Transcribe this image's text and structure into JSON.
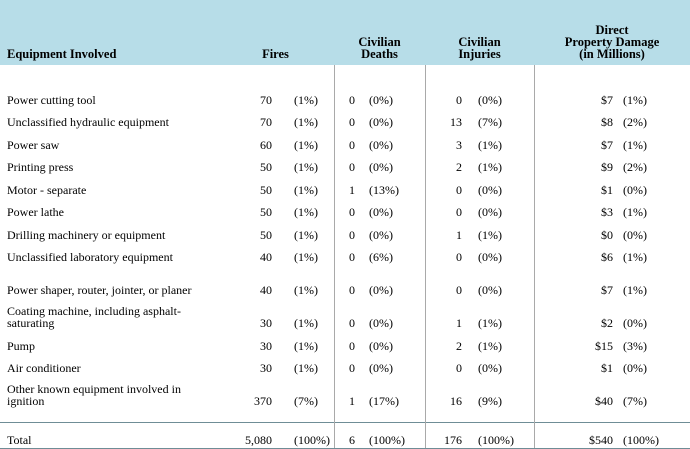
{
  "headers": {
    "equipment": "Equipment Involved",
    "fires": "Fires",
    "deaths_line1": "Civilian",
    "deaths_line2": "Deaths",
    "injuries_line1": "Civilian",
    "injuries_line2": "Injuries",
    "damage_line1": "Direct",
    "damage_line2": "Property Damage",
    "damage_line3": "(in Millions)"
  },
  "rows": [
    {
      "equipment": "Power cutting tool",
      "fires": "70",
      "fires_pct": "(1%)",
      "deaths": "0",
      "deaths_pct": "(0%)",
      "injuries": "0",
      "injuries_pct": "(0%)",
      "damage": "$7",
      "damage_pct": "(1%)"
    },
    {
      "equipment": "Unclassified hydraulic equipment",
      "fires": "70",
      "fires_pct": "(1%)",
      "deaths": "0",
      "deaths_pct": "(0%)",
      "injuries": "13",
      "injuries_pct": "(7%)",
      "damage": "$8",
      "damage_pct": "(2%)"
    },
    {
      "equipment": "Power saw",
      "fires": "60",
      "fires_pct": "(1%)",
      "deaths": "0",
      "deaths_pct": "(0%)",
      "injuries": "3",
      "injuries_pct": "(1%)",
      "damage": "$7",
      "damage_pct": "(1%)"
    },
    {
      "equipment": "Printing press",
      "fires": "50",
      "fires_pct": "(1%)",
      "deaths": "0",
      "deaths_pct": "(0%)",
      "injuries": "2",
      "injuries_pct": "(1%)",
      "damage": "$9",
      "damage_pct": "(2%)"
    },
    {
      "equipment": "Motor - separate",
      "fires": "50",
      "fires_pct": "(1%)",
      "deaths": "1",
      "deaths_pct": "(13%)",
      "injuries": "0",
      "injuries_pct": "(0%)",
      "damage": "$1",
      "damage_pct": "(0%)"
    },
    {
      "equipment": "Power lathe",
      "fires": "50",
      "fires_pct": "(1%)",
      "deaths": "0",
      "deaths_pct": "(0%)",
      "injuries": "0",
      "injuries_pct": "(0%)",
      "damage": "$3",
      "damage_pct": "(1%)"
    },
    {
      "equipment": "Drilling machinery or equipment",
      "fires": "50",
      "fires_pct": "(1%)",
      "deaths": "0",
      "deaths_pct": "(0%)",
      "injuries": "1",
      "injuries_pct": "(1%)",
      "damage": "$0",
      "damage_pct": "(0%)"
    },
    {
      "equipment": "Unclassified laboratory equipment",
      "fires": "40",
      "fires_pct": "(1%)",
      "deaths": "0",
      "deaths_pct": "(6%)",
      "injuries": "0",
      "injuries_pct": "(0%)",
      "damage": "$6",
      "damage_pct": "(1%)"
    },
    {
      "equipment": "Power shaper, router, jointer, or planer",
      "fires": "40",
      "fires_pct": "(1%)",
      "deaths": "0",
      "deaths_pct": "(0%)",
      "injuries": "0",
      "injuries_pct": "(0%)",
      "damage": "$7",
      "damage_pct": "(1%)"
    },
    {
      "equipment": "Coating machine, including asphalt-saturating",
      "fires": "30",
      "fires_pct": "(1%)",
      "deaths": "0",
      "deaths_pct": "(0%)",
      "injuries": "1",
      "injuries_pct": "(1%)",
      "damage": "$2",
      "damage_pct": "(0%)"
    },
    {
      "equipment": "Pump",
      "fires": "30",
      "fires_pct": "(1%)",
      "deaths": "0",
      "deaths_pct": "(0%)",
      "injuries": "2",
      "injuries_pct": "(1%)",
      "damage": "$15",
      "damage_pct": "(3%)"
    },
    {
      "equipment": "Air conditioner",
      "fires": "30",
      "fires_pct": "(1%)",
      "deaths": "0",
      "deaths_pct": "(0%)",
      "injuries": "0",
      "injuries_pct": "(0%)",
      "damage": "$1",
      "damage_pct": "(0%)"
    },
    {
      "equipment": "Other known equipment involved in ignition",
      "fires": "370",
      "fires_pct": "(7%)",
      "deaths": "1",
      "deaths_pct": "(17%)",
      "injuries": "16",
      "injuries_pct": "(9%)",
      "damage": "$40",
      "damage_pct": "(7%)"
    }
  ],
  "total": {
    "equipment": "Total",
    "fires": "5,080",
    "fires_pct": "(100%)",
    "deaths": "6",
    "deaths_pct": "(100%)",
    "injuries": "176",
    "injuries_pct": "(100%)",
    "damage": "$540",
    "damage_pct": "(100%)"
  },
  "colors": {
    "header_bg": "#b7dde8",
    "rule": "#6f8d96",
    "column_separator": "#a9a9a9"
  }
}
